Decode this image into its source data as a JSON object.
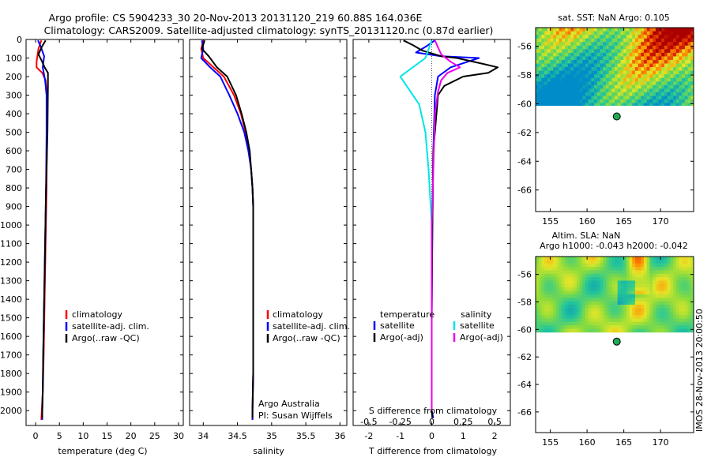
{
  "title": {
    "line1": "Argo profile: CS 5904233_30 20-Nov-2013 20131120_219 60.88S 164.036E",
    "line2": "Climatology: CARS2009. Satellite-adjusted climatology: synTS_20131120.nc (0.87d earlier)"
  },
  "colors": {
    "climatology": "#ff0000",
    "satellite": "#0000ff",
    "argo": "#000000",
    "s_satellite": "#00e5e5",
    "s_argo": "#ee00ee"
  },
  "depth_ticks": [
    "0",
    "100",
    "200",
    "300",
    "400",
    "500",
    "600",
    "700",
    "800",
    "900",
    "1000",
    "1100",
    "1200",
    "1300",
    "1400",
    "1500",
    "1600",
    "1700",
    "1800",
    "1900",
    "2000"
  ],
  "labels": {
    "t_xlabel": "temperature (deg C)",
    "s_xlabel": "salinity",
    "diff_xlabel": "T difference from climatology",
    "diff_toplabel": "S difference from climatology",
    "leg_clim": "climatology",
    "leg_sat": "satellite-adj. clim.",
    "leg_argo": "Argo(..raw -QC)",
    "leg_temperature": "temperature",
    "leg_salinity": "salinity",
    "leg_satellite": "satellite",
    "leg_argo_adj": "Argo(-adj)",
    "credit1": "Argo Australia",
    "credit2": "PI: Susan Wijffels",
    "sst_title": "sat. SST: NaN Argo: 0.105",
    "sla_title1": "Altim. SLA: NaN",
    "sla_title2": "Argo h1000: -0.043 h2000: -0.042",
    "watermark": "IMOS 28-Nov-2013 20:00:50"
  },
  "map_lat_ticks": [
    "-56",
    "-58",
    "-60",
    "-62",
    "-64",
    "-66"
  ],
  "map_lon_ticks": [
    "155",
    "160",
    "165",
    "170"
  ],
  "argo_position": {
    "lon": 164.036,
    "lat": -60.88
  },
  "chart_data": [
    {
      "type": "line",
      "name": "temperature",
      "xlabel": "temperature (deg C)",
      "ylabel": "",
      "xlim": [
        -2,
        31
      ],
      "ylim": [
        2080,
        0
      ],
      "x_ticks": [
        "0",
        "5",
        "10",
        "15",
        "20",
        "25",
        "30"
      ],
      "y_ticks": [
        "0",
        "100",
        "200",
        "300",
        "400",
        "500",
        "600",
        "700",
        "800",
        "900",
        "1000",
        "1100",
        "1200",
        "1300",
        "1400",
        "1500",
        "1600",
        "1700",
        "1800",
        "1900",
        "2000"
      ],
      "legend": [
        "climatology",
        "satellite-adj. clim.",
        "Argo(..raw -QC)"
      ],
      "series": [
        {
          "name": "climatology",
          "points": [
            [
              1.2,
              5
            ],
            [
              0.6,
              50
            ],
            [
              0.2,
              120
            ],
            [
              0.2,
              150
            ],
            [
              1.4,
              180
            ],
            [
              2.1,
              220
            ],
            [
              2.4,
              300
            ],
            [
              2.4,
              500
            ],
            [
              2.3,
              800
            ],
            [
              2.1,
              1100
            ],
            [
              1.9,
              1400
            ],
            [
              1.7,
              1700
            ],
            [
              1.5,
              1900
            ],
            [
              1.3,
              2000
            ],
            [
              1.2,
              2050
            ]
          ]
        },
        {
          "name": "satellite-adj. clim.",
          "points": [
            [
              0.5,
              5
            ],
            [
              1.1,
              40
            ],
            [
              1.8,
              90
            ],
            [
              1.5,
              150
            ],
            [
              2.0,
              220
            ],
            [
              2.3,
              300
            ],
            [
              2.3,
              500
            ],
            [
              2.2,
              800
            ],
            [
              2.0,
              1100
            ],
            [
              1.8,
              1400
            ],
            [
              1.6,
              1700
            ],
            [
              1.5,
              1900
            ],
            [
              1.4,
              2000
            ],
            [
              1.4,
              2050
            ]
          ]
        },
        {
          "name": "Argo(..raw -QC)",
          "points": [
            [
              2.1,
              5
            ],
            [
              1.3,
              40
            ],
            [
              0.6,
              80
            ],
            [
              1.2,
              110
            ],
            [
              1.9,
              150
            ],
            [
              2.6,
              180
            ],
            [
              2.6,
              250
            ],
            [
              2.5,
              500
            ],
            [
              2.2,
              800
            ],
            [
              2.0,
              1100
            ],
            [
              1.8,
              1400
            ],
            [
              1.6,
              1700
            ],
            [
              1.5,
              1900
            ],
            [
              1.4,
              2000
            ],
            [
              1.4,
              2040
            ]
          ]
        }
      ]
    },
    {
      "type": "line",
      "name": "salinity",
      "xlabel": "salinity",
      "ylabel": "",
      "xlim": [
        33.8,
        36.1
      ],
      "ylim": [
        2080,
        0
      ],
      "x_ticks": [
        "34",
        "34.5",
        "35",
        "35.5",
        "36"
      ],
      "legend": [
        "climatology",
        "satellite-adj. clim.",
        "Argo(..raw -QC)"
      ],
      "series": [
        {
          "name": "climatology",
          "points": [
            [
              34.0,
              5
            ],
            [
              33.97,
              50
            ],
            [
              34.0,
              100
            ],
            [
              34.15,
              150
            ],
            [
              34.3,
              200
            ],
            [
              34.45,
              300
            ],
            [
              34.55,
              400
            ],
            [
              34.62,
              500
            ],
            [
              34.67,
              600
            ],
            [
              34.7,
              700
            ],
            [
              34.72,
              800
            ],
            [
              34.73,
              900
            ],
            [
              34.73,
              1200
            ],
            [
              34.73,
              1600
            ],
            [
              34.73,
              1800
            ],
            [
              34.72,
              2000
            ],
            [
              34.72,
              2050
            ]
          ]
        },
        {
          "name": "satellite-adj. clim.",
          "points": [
            [
              33.98,
              5
            ],
            [
              34.0,
              50
            ],
            [
              33.97,
              100
            ],
            [
              34.1,
              150
            ],
            [
              34.25,
              200
            ],
            [
              34.38,
              300
            ],
            [
              34.5,
              400
            ],
            [
              34.6,
              500
            ],
            [
              34.66,
              600
            ],
            [
              34.7,
              700
            ],
            [
              34.72,
              800
            ],
            [
              34.73,
              900
            ],
            [
              34.73,
              1200
            ],
            [
              34.73,
              1600
            ],
            [
              34.73,
              1800
            ],
            [
              34.72,
              2000
            ],
            [
              34.72,
              2050
            ]
          ]
        },
        {
          "name": "Argo(..raw -QC)",
          "points": [
            [
              34.02,
              5
            ],
            [
              33.98,
              50
            ],
            [
              34.08,
              90
            ],
            [
              34.2,
              150
            ],
            [
              34.35,
              200
            ],
            [
              34.48,
              300
            ],
            [
              34.56,
              400
            ],
            [
              34.63,
              500
            ],
            [
              34.68,
              600
            ],
            [
              34.7,
              700
            ],
            [
              34.72,
              800
            ],
            [
              34.73,
              900
            ],
            [
              34.73,
              1200
            ],
            [
              34.73,
              1600
            ],
            [
              34.73,
              1800
            ],
            [
              34.72,
              2000
            ],
            [
              34.72,
              2040
            ]
          ]
        }
      ]
    },
    {
      "type": "line",
      "name": "difference",
      "xlabel": "T difference from climatology",
      "x2label": "S difference from climatology",
      "ylabel": "",
      "xlim": [
        -2.5,
        2.5
      ],
      "ylim": [
        2080,
        0
      ],
      "x_ticks": [
        "-2",
        "-1",
        "0",
        "1",
        "2"
      ],
      "x2_ticks": [
        "-0.5",
        "-0.25",
        "0",
        "0.25",
        "0.5"
      ],
      "legend": [
        "temperature satellite",
        "temperature Argo(-adj)",
        "salinity satellite",
        "salinity Argo(-adj)"
      ],
      "series": [
        {
          "name": "temperature satellite",
          "points": [
            [
              0.1,
              5
            ],
            [
              -0.2,
              40
            ],
            [
              -0.5,
              70
            ],
            [
              0.3,
              90
            ],
            [
              1.5,
              100
            ],
            [
              0.6,
              150
            ],
            [
              0.2,
              200
            ],
            [
              0.1,
              300
            ],
            [
              0.05,
              600
            ],
            [
              0.02,
              1000
            ],
            [
              0.0,
              1500
            ],
            [
              0.0,
              2000
            ],
            [
              0.05,
              2040
            ]
          ]
        },
        {
          "name": "temperature Argo(-adj)",
          "points": [
            [
              -0.9,
              5
            ],
            [
              -0.6,
              30
            ],
            [
              -0.3,
              60
            ],
            [
              0.3,
              90
            ],
            [
              0.8,
              100
            ],
            [
              1.6,
              130
            ],
            [
              2.1,
              150
            ],
            [
              1.8,
              180
            ],
            [
              1.0,
              200
            ],
            [
              0.4,
              250
            ],
            [
              0.2,
              300
            ],
            [
              0.05,
              600
            ],
            [
              0.02,
              1000
            ],
            [
              0.0,
              1500
            ],
            [
              0.0,
              2000
            ],
            [
              0.02,
              2040
            ]
          ]
        },
        {
          "name": "salinity satellite",
          "points": [
            [
              0.0,
              5
            ],
            [
              -0.2,
              100
            ],
            [
              -1.0,
              200
            ],
            [
              -0.8,
              250
            ],
            [
              -0.4,
              350
            ],
            [
              -0.2,
              500
            ],
            [
              -0.1,
              700
            ],
            [
              0.0,
              1000
            ],
            [
              0.0,
              1500
            ],
            [
              0.0,
              2000
            ]
          ]
        },
        {
          "name": "salinity Argo(-adj)",
          "points": [
            [
              0.1,
              5
            ],
            [
              0.3,
              80
            ],
            [
              0.6,
              120
            ],
            [
              0.9,
              150
            ],
            [
              0.5,
              180
            ],
            [
              0.3,
              220
            ],
            [
              0.2,
              280
            ],
            [
              0.1,
              400
            ],
            [
              0.05,
              700
            ],
            [
              0.0,
              1000
            ],
            [
              0.0,
              1500
            ],
            [
              0.0,
              2000
            ]
          ]
        }
      ]
    },
    {
      "type": "heatmap",
      "name": "sat. SST",
      "title": "sat. SST: NaN Argo: 0.105",
      "xlim": [
        153,
        174.5
      ],
      "ylim": [
        -67.5,
        -54.7
      ],
      "x_ticks": [
        "155",
        "160",
        "165",
        "170"
      ],
      "y_ticks": [
        "-56",
        "-58",
        "-60",
        "-62",
        "-64",
        "-66"
      ],
      "data_lat_range": [
        -60.2,
        -54.7
      ],
      "argo_point": [
        164.036,
        -60.88
      ]
    },
    {
      "type": "heatmap",
      "name": "Altim. SLA",
      "title": "Altim. SLA: NaN",
      "subtitle": "Argo h1000: -0.043 h2000: -0.042",
      "xlim": [
        153,
        174.5
      ],
      "ylim": [
        -67.5,
        -54.7
      ],
      "x_ticks": [
        "155",
        "160",
        "165",
        "170"
      ],
      "y_ticks": [
        "-56",
        "-58",
        "-60",
        "-62",
        "-64",
        "-66"
      ],
      "data_lat_range": [
        -60.2,
        -54.7
      ],
      "argo_point": [
        164.036,
        -60.88
      ]
    }
  ]
}
